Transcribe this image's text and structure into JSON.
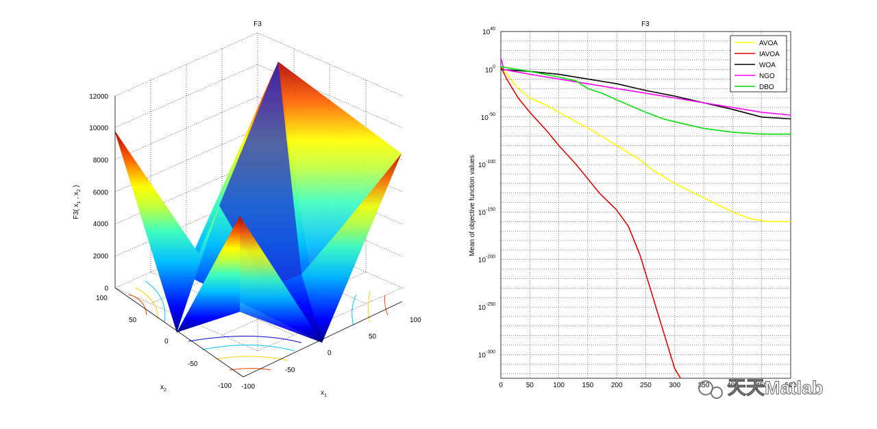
{
  "left_plot": {
    "title": "F3",
    "zlabel": "F3( x",
    "zlabel_sub1": "1",
    "zlabel_mid": " , x",
    "zlabel_sub2": "2",
    "zlabel_end": " )",
    "xlabel": "x",
    "xlabel_sub": "1",
    "ylabel": "x",
    "ylabel_sub": "2",
    "z_ticks": [
      "0",
      "2000",
      "4000",
      "6000",
      "8000",
      "10000",
      "12000"
    ],
    "x1_ticks": [
      "-100",
      "-50",
      "0",
      "50",
      "100"
    ],
    "x2_ticks": [
      "100",
      "50",
      "0",
      "-50",
      "-100"
    ]
  },
  "chart_data": {
    "type": "line",
    "title": "F3",
    "xlabel": "",
    "ylabel": "Mean of objective function values",
    "xlim": [
      0,
      500
    ],
    "ylim_exponent": [
      -325,
      40
    ],
    "yscale": "log",
    "grid": true,
    "legend_position": "top-right",
    "x_ticks": [
      "0",
      "50",
      "100",
      "150",
      "200",
      "250",
      "300",
      "350",
      "400",
      "450",
      "500"
    ],
    "y_tick_base": "10",
    "y_tick_exponents": [
      "40",
      "0",
      "-50",
      "-100",
      "-150",
      "-200",
      "-250",
      "-300"
    ],
    "series": [
      {
        "name": "AVOA",
        "color": "#ffff00",
        "x": [
          0,
          30,
          50,
          80,
          100,
          130,
          160,
          200,
          240,
          260,
          300,
          350,
          400,
          430,
          460,
          500
        ],
        "log10_y": [
          3,
          -20,
          -30,
          -38,
          -45,
          -55,
          -65,
          -80,
          -95,
          -105,
          -120,
          -135,
          -150,
          -157,
          -160,
          -160
        ]
      },
      {
        "name": "IAVOA",
        "color": "#dd0000",
        "x": [
          0,
          10,
          30,
          50,
          80,
          100,
          130,
          150,
          170,
          200,
          220,
          240,
          260,
          280,
          300,
          310
        ],
        "log10_y": [
          3,
          -10,
          -30,
          -45,
          -65,
          -80,
          -100,
          -115,
          -130,
          -148,
          -165,
          -195,
          -235,
          -275,
          -315,
          -325
        ]
      },
      {
        "name": "WOA",
        "color": "#000000",
        "x": [
          0,
          50,
          100,
          150,
          200,
          250,
          300,
          350,
          400,
          450,
          500
        ],
        "log10_y": [
          0,
          -2,
          -5,
          -10,
          -15,
          -22,
          -28,
          -35,
          -42,
          -50,
          -52
        ]
      },
      {
        "name": "NGO",
        "color": "#ff00ff",
        "x": [
          0,
          2,
          5,
          50,
          100,
          150,
          200,
          250,
          300,
          350,
          400,
          450,
          500
        ],
        "log10_y": [
          12,
          8,
          0,
          -5,
          -10,
          -15,
          -20,
          -25,
          -30,
          -35,
          -40,
          -45,
          -48
        ]
      },
      {
        "name": "DBO",
        "color": "#00dd00",
        "x": [
          0,
          50,
          100,
          130,
          150,
          175,
          200,
          250,
          280,
          300,
          350,
          400,
          450,
          500
        ],
        "log10_y": [
          3,
          -2,
          -8,
          -12,
          -20,
          -25,
          -32,
          -45,
          -52,
          -55,
          -62,
          -66,
          -68,
          -68
        ]
      }
    ]
  },
  "watermark": {
    "text": "天天Matlab"
  }
}
